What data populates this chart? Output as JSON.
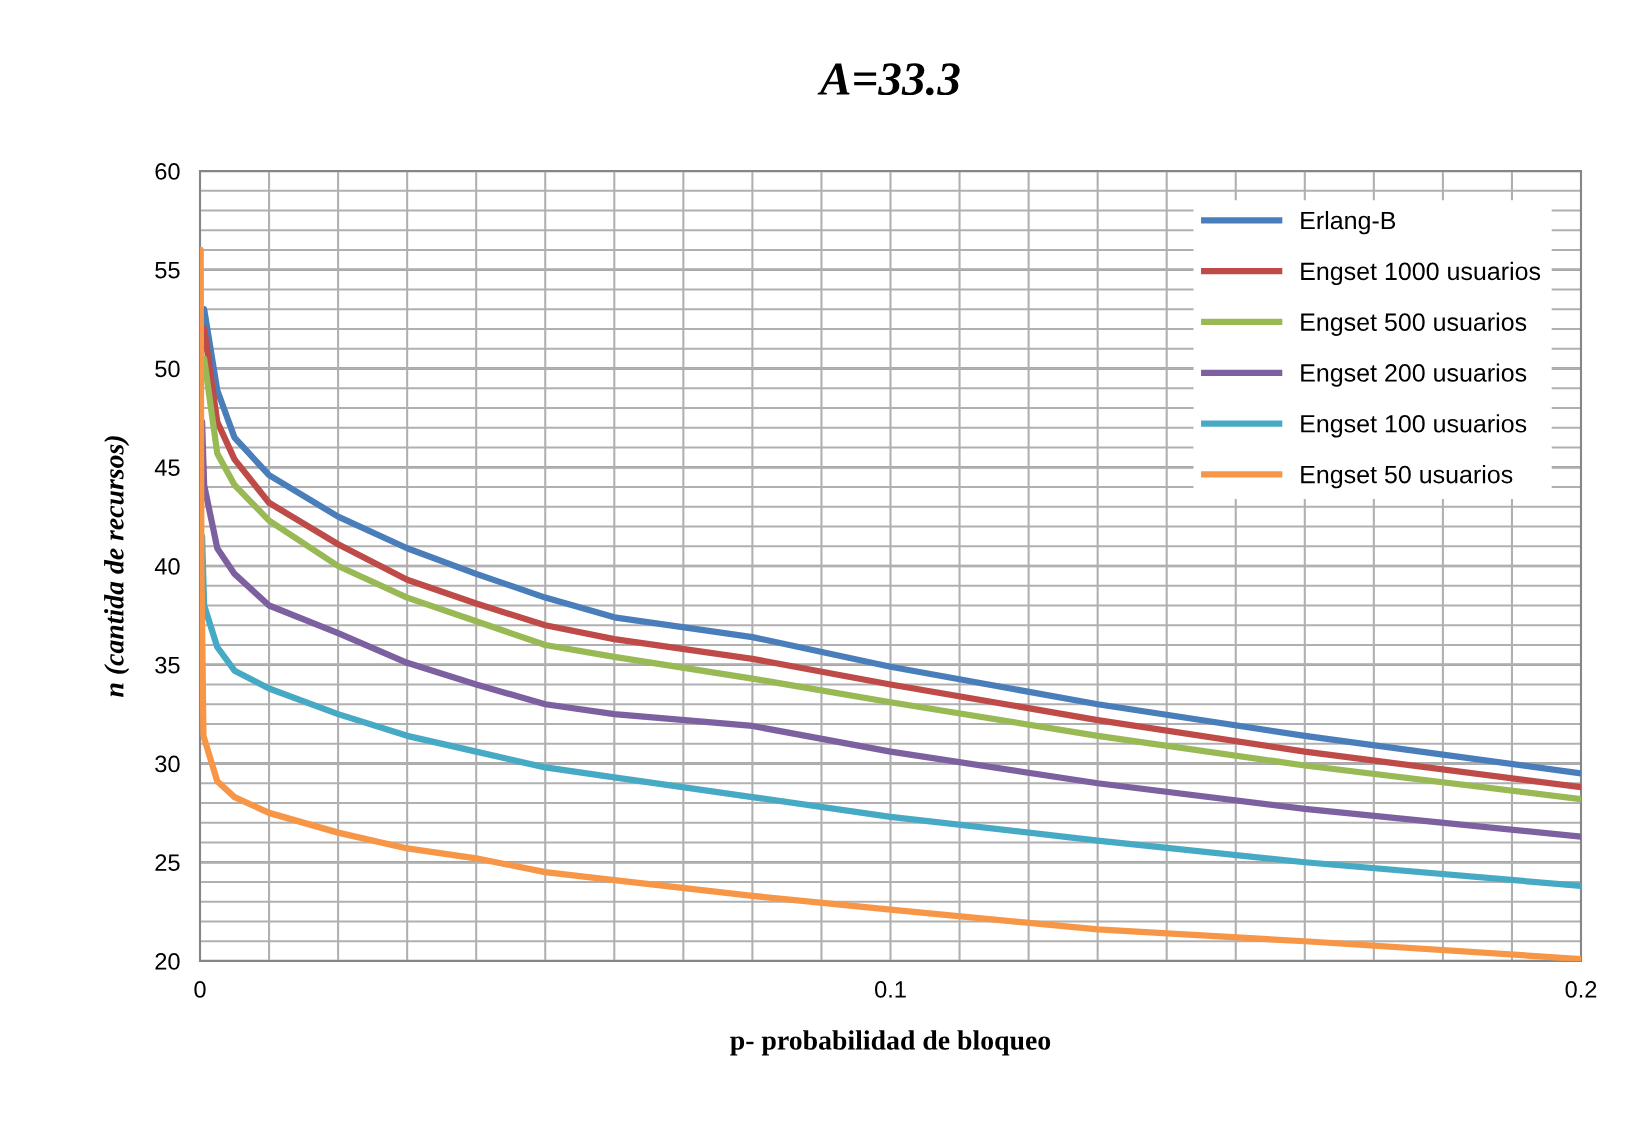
{
  "chart_data": {
    "type": "line",
    "title": "A=33.3",
    "xlabel": "p- probabilidad de bloqueo",
    "ylabel": "n (cantida de recursos)",
    "xlim": [
      0,
      0.2
    ],
    "ylim": [
      20,
      60
    ],
    "xticks": [
      0,
      {
        "value": 0.01,
        "label": null
      },
      {
        "value": 0.02,
        "label": null
      },
      {
        "value": 0.03,
        "label": null
      },
      {
        "value": 0.04,
        "label": null
      },
      {
        "value": 0.05,
        "label": null
      },
      {
        "value": 0.06,
        "label": null
      },
      {
        "value": 0.07,
        "label": null
      },
      {
        "value": 0.08,
        "label": null
      },
      {
        "value": 0.09,
        "label": null
      },
      0.1,
      {
        "value": 0.11,
        "label": null
      },
      {
        "value": 0.12,
        "label": null
      },
      {
        "value": 0.13,
        "label": null
      },
      {
        "value": 0.14,
        "label": null
      },
      {
        "value": 0.15,
        "label": null
      },
      {
        "value": 0.16,
        "label": null
      },
      {
        "value": 0.17,
        "label": null
      },
      {
        "value": 0.18,
        "label": null
      },
      {
        "value": 0.19,
        "label": null
      },
      0.2
    ],
    "yticks": [
      20,
      {
        "value": 21,
        "label": null
      },
      {
        "value": 22,
        "label": null
      },
      {
        "value": 23,
        "label": null
      },
      {
        "value": 24,
        "label": null
      },
      25,
      {
        "value": 26,
        "label": null
      },
      {
        "value": 27,
        "label": null
      },
      {
        "value": 28,
        "label": null
      },
      {
        "value": 29,
        "label": null
      },
      30,
      {
        "value": 31,
        "label": null
      },
      {
        "value": 32,
        "label": null
      },
      {
        "value": 33,
        "label": null
      },
      {
        "value": 34,
        "label": null
      },
      35,
      {
        "value": 36,
        "label": null
      },
      {
        "value": 37,
        "label": null
      },
      {
        "value": 38,
        "label": null
      },
      {
        "value": 39,
        "label": null
      },
      40,
      {
        "value": 41,
        "label": null
      },
      {
        "value": 42,
        "label": null
      },
      {
        "value": 43,
        "label": null
      },
      {
        "value": 44,
        "label": null
      },
      45,
      {
        "value": 46,
        "label": null
      },
      {
        "value": 47,
        "label": null
      },
      {
        "value": 48,
        "label": null
      },
      {
        "value": 49,
        "label": null
      },
      50,
      {
        "value": 51,
        "label": null
      },
      {
        "value": 52,
        "label": null
      },
      {
        "value": 53,
        "label": null
      },
      {
        "value": 54,
        "label": null
      },
      55,
      {
        "value": 56,
        "label": null
      },
      {
        "value": 57,
        "label": null
      },
      {
        "value": 58,
        "label": null
      },
      {
        "value": 59,
        "label": null
      },
      60
    ],
    "grid": true,
    "legend": "top right",
    "marker": "none",
    "line_style": "solid",
    "series": [
      {
        "name": "Erlang-B",
        "color": "#4a7ebb",
        "x": [
          0.0006,
          0.0025,
          0.005,
          0.01,
          0.02,
          0.03,
          0.04,
          0.05,
          0.06,
          0.08,
          0.1,
          0.13,
          0.16,
          0.2
        ],
        "values": [
          53.0,
          48.9,
          46.5,
          44.6,
          42.5,
          40.9,
          39.6,
          38.4,
          37.4,
          36.4,
          34.9,
          33.0,
          31.4,
          29.5
        ]
      },
      {
        "name": "Engset 1000 usuarios",
        "color": "#be4b48",
        "x": [
          0.0006,
          0.0025,
          0.005,
          0.01,
          0.02,
          0.03,
          0.04,
          0.05,
          0.06,
          0.08,
          0.1,
          0.13,
          0.16,
          0.2
        ],
        "values": [
          52.0,
          47.3,
          45.4,
          43.2,
          41.1,
          39.3,
          38.1,
          37.0,
          36.3,
          35.3,
          34.0,
          32.2,
          30.6,
          28.8
        ]
      },
      {
        "name": "Engset 500 usuarios",
        "color": "#98b954",
        "x": [
          0.0006,
          0.0025,
          0.005,
          0.01,
          0.02,
          0.03,
          0.04,
          0.05,
          0.06,
          0.08,
          0.1,
          0.13,
          0.16,
          0.2
        ],
        "values": [
          50.5,
          45.7,
          44.1,
          42.3,
          40.0,
          38.4,
          37.2,
          36.0,
          35.4,
          34.3,
          33.1,
          31.4,
          29.9,
          28.2
        ]
      },
      {
        "name": "Engset 200 usuarios",
        "color": "#7d60a0",
        "x": [
          0.0003,
          0.0006,
          0.0025,
          0.005,
          0.01,
          0.02,
          0.03,
          0.04,
          0.05,
          0.06,
          0.08,
          0.1,
          0.13,
          0.16,
          0.2
        ],
        "values": [
          47.3,
          44.1,
          40.9,
          39.6,
          38.0,
          36.6,
          35.1,
          34.0,
          33.0,
          32.5,
          31.9,
          30.6,
          29.0,
          27.7,
          26.3
        ]
      },
      {
        "name": "Engset 100 usuarios",
        "color": "#46aac5",
        "x": [
          0.0003,
          0.0006,
          0.0025,
          0.005,
          0.01,
          0.02,
          0.03,
          0.04,
          0.05,
          0.06,
          0.08,
          0.1,
          0.13,
          0.16,
          0.2
        ],
        "values": [
          41.5,
          38.0,
          35.9,
          34.7,
          33.8,
          32.5,
          31.4,
          30.6,
          29.8,
          29.3,
          28.3,
          27.3,
          26.1,
          25.0,
          23.8
        ]
      },
      {
        "name": "Engset 50 usuarios",
        "color": "#f79646",
        "x": [
          0.0001,
          0.0002,
          0.0005,
          0.0025,
          0.005,
          0.01,
          0.02,
          0.03,
          0.04,
          0.05,
          0.06,
          0.08,
          0.1,
          0.13,
          0.16,
          0.2
        ],
        "values": [
          56.0,
          40.0,
          31.4,
          29.1,
          28.3,
          27.5,
          26.5,
          25.7,
          25.2,
          24.5,
          24.1,
          23.3,
          22.6,
          21.6,
          21.0,
          20.1
        ]
      }
    ]
  }
}
